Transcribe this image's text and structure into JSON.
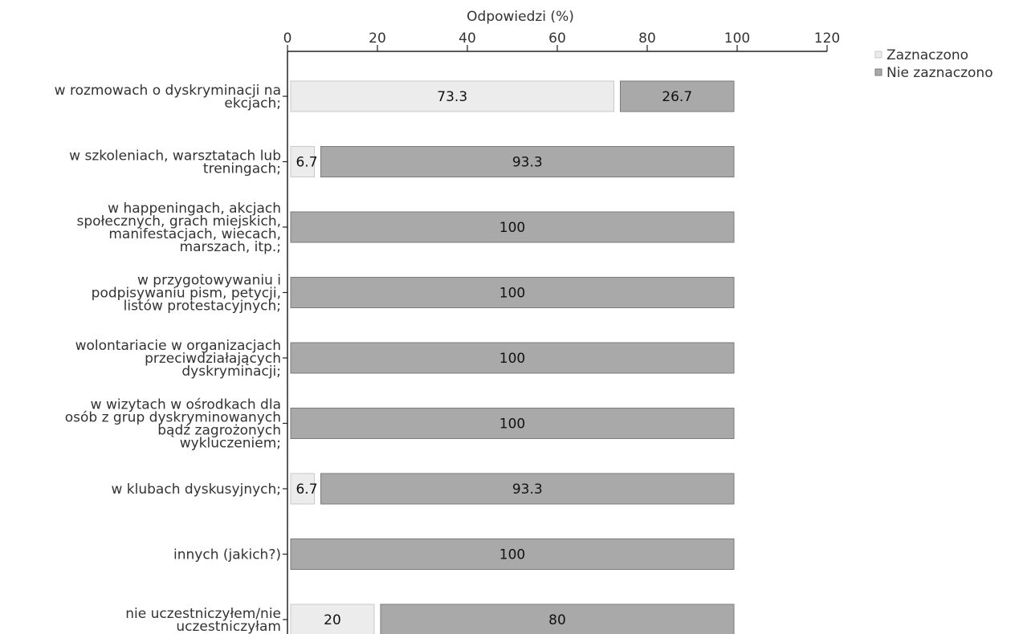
{
  "chart_data": {
    "type": "bar",
    "orientation": "horizontal",
    "stacked": true,
    "xlabel": "Odpowiedzi (%)",
    "xlim": [
      0,
      120
    ],
    "x_ticks": [
      "0",
      "20",
      "40",
      "60",
      "80",
      "100",
      "120"
    ],
    "grid": false,
    "legend_position": "top-right",
    "categories": [
      [
        "w rozmowach o dyskryminacji na",
        "ekcjach;"
      ],
      [
        "w szkoleniach, warsztatach lub",
        "treningach;"
      ],
      [
        "w happeningach, akcjach",
        "społecznych, grach miejskich,",
        "manifestacjach, wiecach,",
        "marszach, itp.;"
      ],
      [
        "w przygotowywaniu i",
        "podpisywaniu pism, petycji,",
        "listów protestacyjnych;"
      ],
      [
        "wolontariacie w organizacjach",
        "przeciwdziałających",
        "dyskryminacji;"
      ],
      [
        "w wizytach w ośrodkach dla",
        "osób z grup dyskryminowanych",
        "bądź zagrożonych",
        "wykluczeniem;"
      ],
      [
        "w klubach dyskusyjnych;"
      ],
      [
        "innych (jakich?)"
      ],
      [
        "nie uczestniczyłem/nie",
        "uczestniczyłam"
      ]
    ],
    "series": [
      {
        "name": "Zaznaczono",
        "color": "#ececec",
        "values": [
          73.3,
          6.7,
          0,
          0,
          0,
          0,
          6.7,
          0,
          20
        ],
        "labels": [
          "73.3",
          "6.7",
          "",
          "",
          "",
          "",
          "6.7",
          "",
          "20"
        ]
      },
      {
        "name": "Nie zaznaczono",
        "color": "#a9a9a9",
        "values": [
          26.7,
          93.3,
          100,
          100,
          100,
          100,
          93.3,
          100,
          80
        ],
        "labels": [
          "26.7",
          "93.3",
          "100",
          "100",
          "100",
          "100",
          "93.3",
          "100",
          "80"
        ]
      }
    ]
  }
}
